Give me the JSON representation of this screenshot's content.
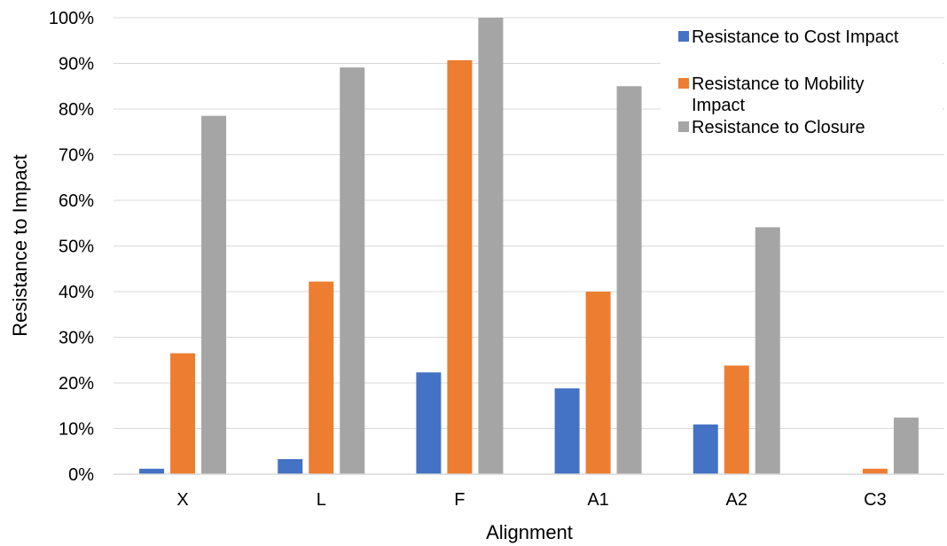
{
  "chart_data": {
    "type": "bar",
    "title": "",
    "xlabel": "Alignment",
    "ylabel": "Resistance to Impact",
    "categories": [
      "X",
      "L",
      "F",
      "A1",
      "A2",
      "C3"
    ],
    "ylim": [
      0,
      100
    ],
    "y_ticks": [
      "0%",
      "10%",
      "20%",
      "30%",
      "40%",
      "50%",
      "60%",
      "70%",
      "80%",
      "90%",
      "100%"
    ],
    "y_unit": "%",
    "grid": "horizontal",
    "legend_position": "top-right",
    "series": [
      {
        "name": "Resistance to Cost Impact",
        "color": "#4472C4",
        "values": [
          1.2,
          3.3,
          22.3,
          18.8,
          10.9,
          0
        ]
      },
      {
        "name": "Resistance to Mobility Impact",
        "legend_lines": [
          "Resistance to Mobility",
          "Impact"
        ],
        "color": "#ED7D31",
        "values": [
          26.5,
          42.2,
          90.7,
          40.0,
          23.8,
          1.2
        ]
      },
      {
        "name": "Resistance to Closure",
        "color": "#A5A5A5",
        "values": [
          78.5,
          89.1,
          100,
          85.0,
          54.1,
          12.4
        ]
      }
    ]
  }
}
